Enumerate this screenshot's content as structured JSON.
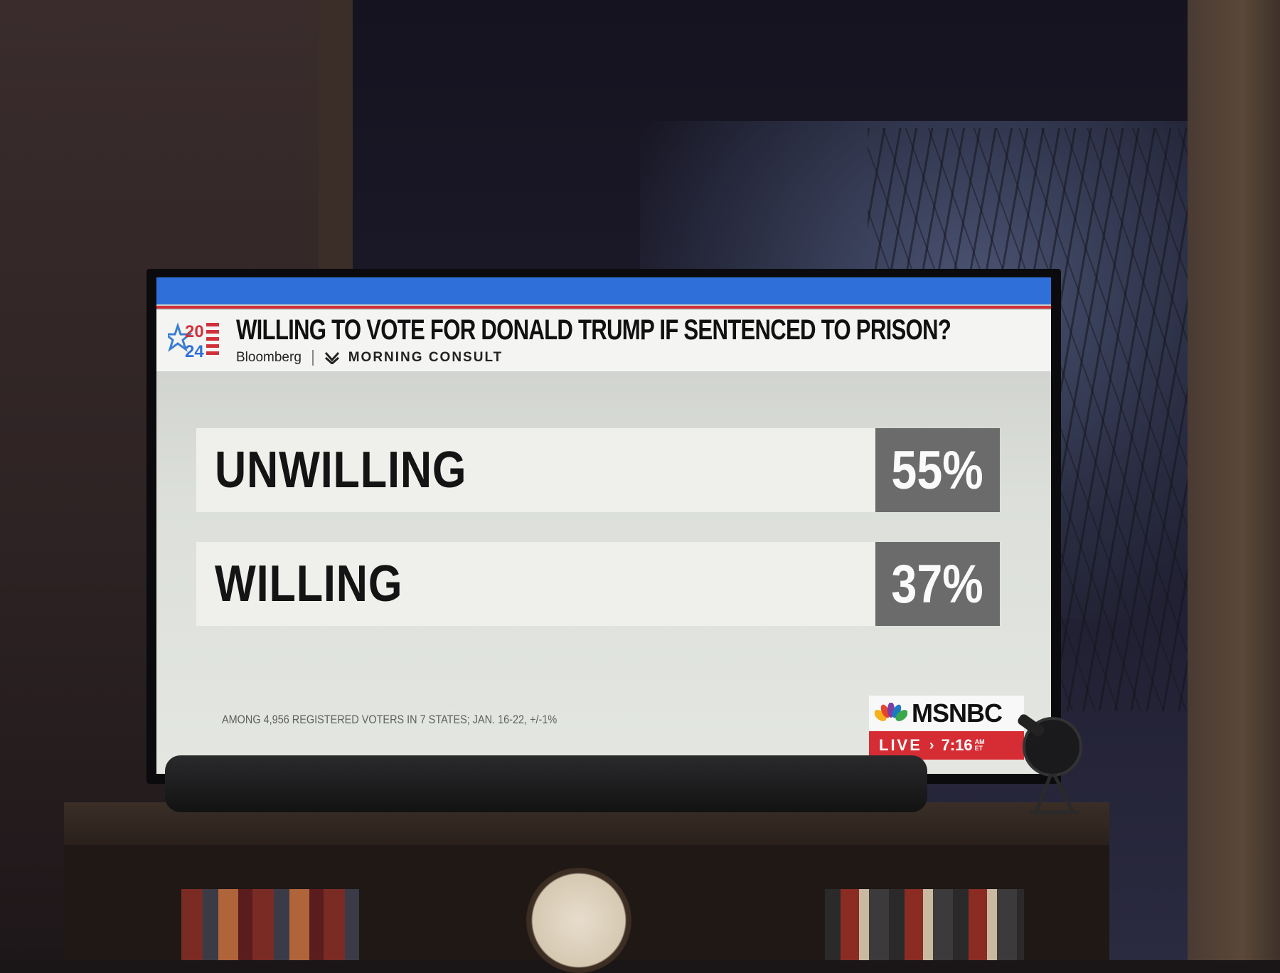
{
  "graphic": {
    "logo_year_top": "20",
    "logo_year_bottom": "24",
    "headline": "WILLING TO VOTE FOR DONALD TRUMP IF SENTENCED TO PRISON?",
    "source_1": "Bloomberg",
    "source_2": "MORNING CONSULT",
    "rows": [
      {
        "label": "UNWILLING",
        "value": "55%"
      },
      {
        "label": "WILLING",
        "value": "37%"
      }
    ],
    "footnote": "AMONG 4,956 REGISTERED VOTERS IN 7 STATES; JAN. 16-22, +/-1%"
  },
  "network_bug": {
    "name": "MSNBC",
    "live": "LIVE",
    "time": "7:16",
    "am": "AM",
    "et": "ET"
  },
  "colors": {
    "blue_band": "#2f6fd9",
    "red_accent": "#d0313b",
    "value_box": "#6b6b6b"
  }
}
